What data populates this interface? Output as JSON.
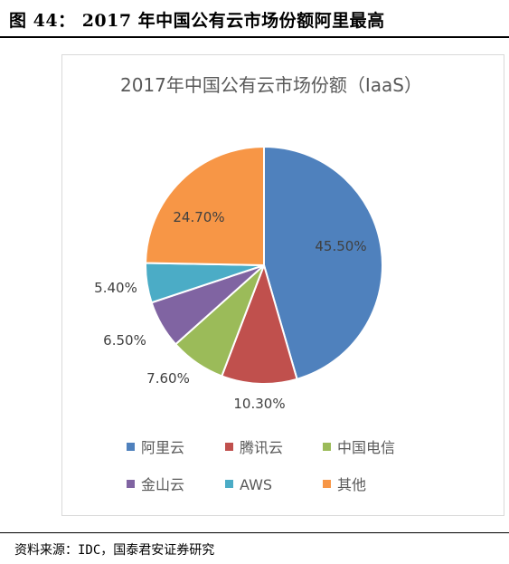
{
  "figure": {
    "label": "图 44：",
    "title": "2017 年中国公有云市场份额阿里最高"
  },
  "source_note": "资料来源：IDC，国泰君安证券研究",
  "chart_data": {
    "type": "pie",
    "title": "2017年中国公有云市场份额（IaaS）",
    "series": [
      {
        "name": "阿里云",
        "value": 45.5,
        "label": "45.50%",
        "color": "#4f81bd"
      },
      {
        "name": "腾讯云",
        "value": 10.3,
        "label": "10.30%",
        "color": "#c0504d"
      },
      {
        "name": "中国电信",
        "value": 7.6,
        "label": "7.60%",
        "color": "#9bbb59"
      },
      {
        "name": "金山云",
        "value": 6.5,
        "label": "6.50%",
        "color": "#8064a2"
      },
      {
        "name": "AWS",
        "value": 5.4,
        "label": "5.40%",
        "color": "#4bacc6"
      },
      {
        "name": "其他",
        "value": 24.7,
        "label": "24.70%",
        "color": "#f79646"
      }
    ],
    "legend_position": "bottom"
  }
}
